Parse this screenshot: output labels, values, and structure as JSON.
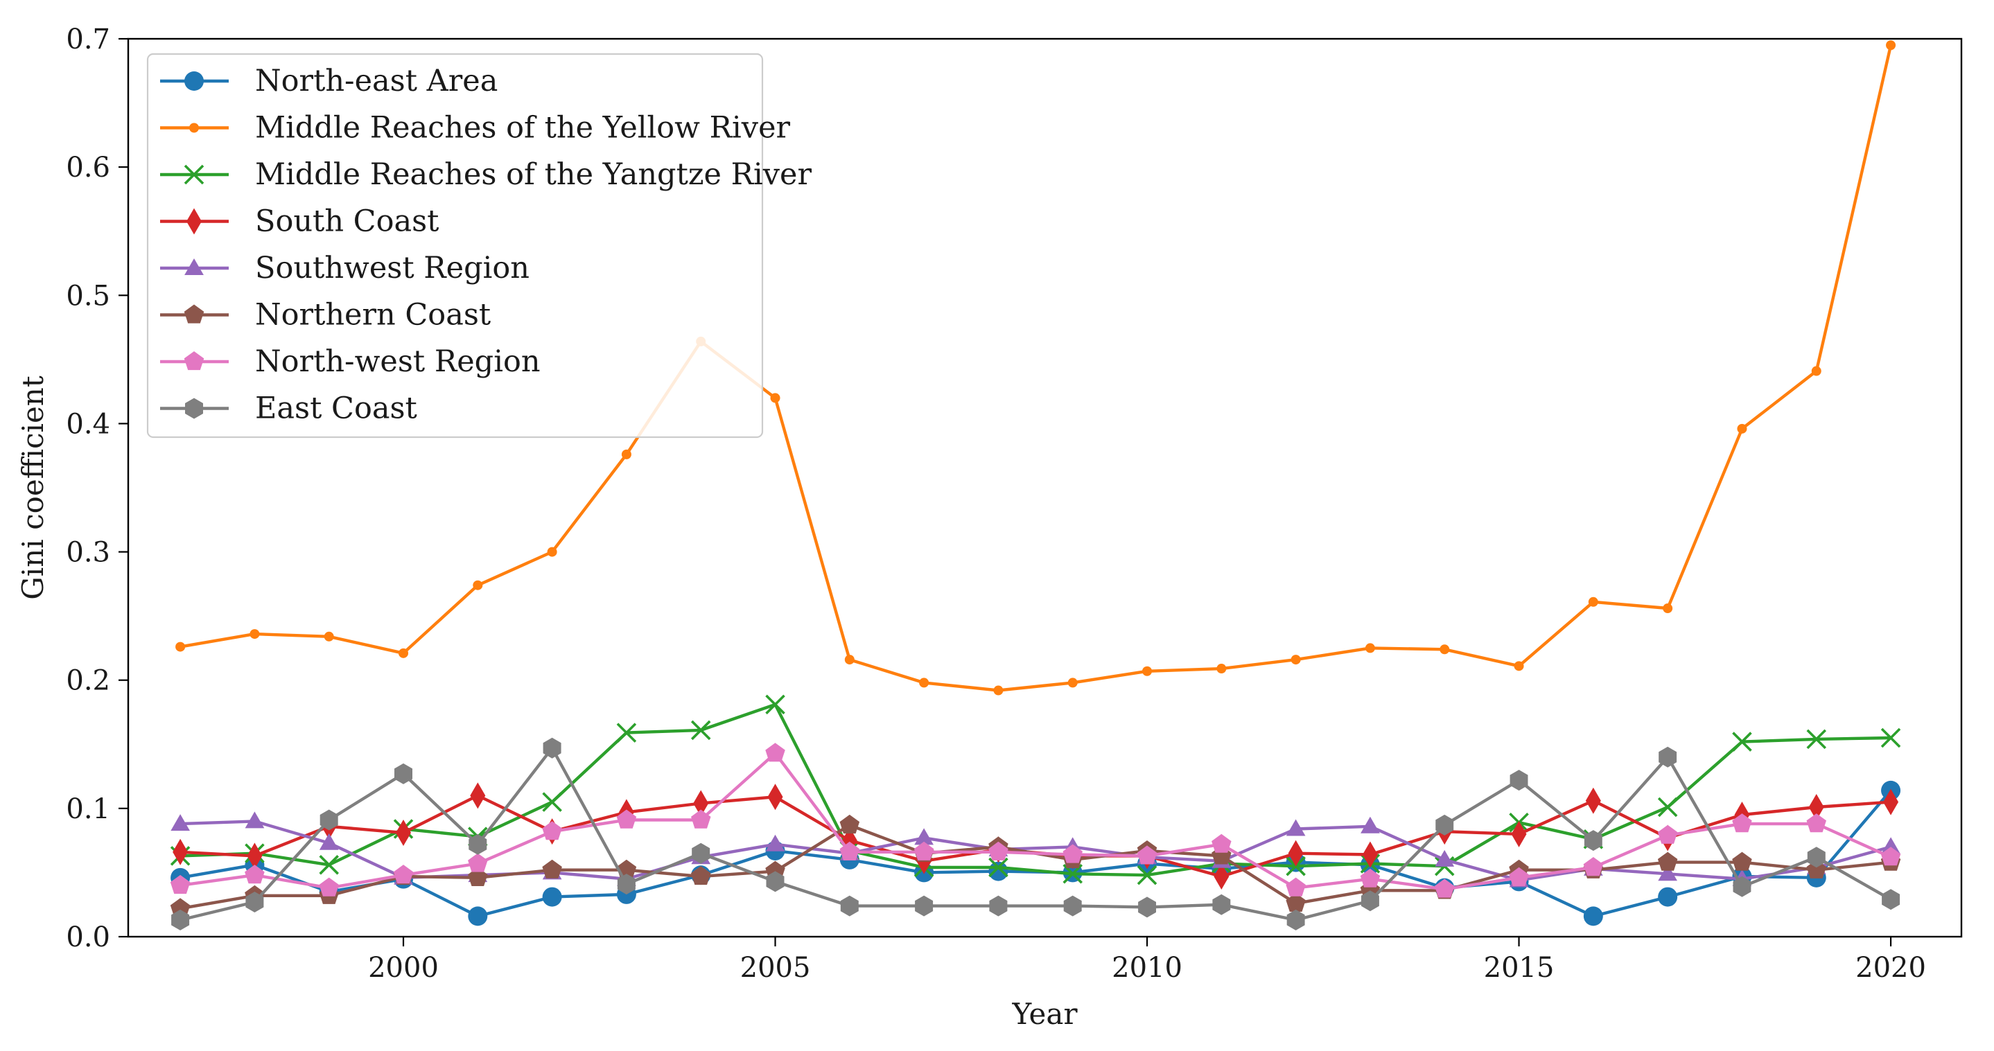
{
  "chart_data": {
    "type": "line",
    "title": "",
    "xlabel": "Year",
    "ylabel": "Gini coefficient",
    "xlim": [
      1996.3,
      2020.95
    ],
    "ylim": [
      0.0,
      0.7
    ],
    "x_ticks": [
      2000,
      2005,
      2010,
      2015,
      2020
    ],
    "x_tick_labels": [
      "2000",
      "2005",
      "2010",
      "2015",
      "2020"
    ],
    "y_ticks": [
      0.0,
      0.1,
      0.2,
      0.3,
      0.4,
      0.5,
      0.6,
      0.7
    ],
    "y_tick_labels": [
      "0.0",
      "0.1",
      "0.2",
      "0.3",
      "0.4",
      "0.5",
      "0.6",
      "0.7"
    ],
    "grid": false,
    "legend_position": "top-left",
    "x": [
      1997,
      1998,
      1999,
      2000,
      2001,
      2002,
      2003,
      2004,
      2005,
      2006,
      2007,
      2008,
      2009,
      2010,
      2011,
      2012,
      2013,
      2014,
      2015,
      2016,
      2017,
      2018,
      2019,
      2020
    ],
    "series": [
      {
        "name": "North-east Area",
        "color": "#1f77b4",
        "marker": "circle",
        "values": [
          0.046,
          0.056,
          0.035,
          0.045,
          0.016,
          0.031,
          0.033,
          0.048,
          0.067,
          0.06,
          0.05,
          0.051,
          0.05,
          0.057,
          0.053,
          0.058,
          0.056,
          0.038,
          0.043,
          0.016,
          0.031,
          0.047,
          0.046,
          0.114
        ]
      },
      {
        "name": "Middle Reaches of the Yellow River",
        "color": "#ff7f0e",
        "marker": "point",
        "values": [
          0.226,
          0.236,
          0.234,
          0.221,
          0.274,
          0.3,
          0.376,
          0.464,
          0.42,
          0.216,
          0.198,
          0.192,
          0.198,
          0.207,
          0.209,
          0.216,
          0.225,
          0.224,
          0.211,
          0.261,
          0.256,
          0.396,
          0.441,
          0.695
        ]
      },
      {
        "name": "Middle Reaches of the Yangtze River",
        "color": "#2ca02c",
        "marker": "x",
        "values": [
          0.063,
          0.065,
          0.056,
          0.084,
          0.078,
          0.105,
          0.159,
          0.161,
          0.181,
          0.067,
          0.054,
          0.054,
          0.049,
          0.048,
          0.057,
          0.055,
          0.057,
          0.055,
          0.089,
          0.076,
          0.101,
          0.152,
          0.154,
          0.155
        ]
      },
      {
        "name": "South Coast",
        "color": "#d62728",
        "marker": "diamond",
        "values": [
          0.066,
          0.063,
          0.086,
          0.081,
          0.11,
          0.082,
          0.097,
          0.104,
          0.109,
          0.075,
          0.059,
          0.068,
          0.063,
          0.063,
          0.047,
          0.065,
          0.064,
          0.082,
          0.08,
          0.106,
          0.077,
          0.095,
          0.101,
          0.105
        ]
      },
      {
        "name": "Southwest Region",
        "color": "#9467bd",
        "marker": "triangle",
        "values": [
          0.088,
          0.09,
          0.073,
          0.046,
          0.048,
          0.05,
          0.045,
          0.062,
          0.072,
          0.065,
          0.077,
          0.068,
          0.07,
          0.062,
          0.059,
          0.084,
          0.086,
          0.06,
          0.044,
          0.053,
          0.049,
          0.045,
          0.054,
          0.07
        ]
      },
      {
        "name": "Northern Coast",
        "color": "#8c564b",
        "marker": "pentagon",
        "values": [
          0.022,
          0.032,
          0.032,
          0.047,
          0.046,
          0.052,
          0.052,
          0.047,
          0.051,
          0.087,
          0.065,
          0.07,
          0.06,
          0.067,
          0.063,
          0.026,
          0.036,
          0.036,
          0.052,
          0.052,
          0.058,
          0.058,
          0.052,
          0.058
        ]
      },
      {
        "name": "North-west Region",
        "color": "#e377c2",
        "marker": "pentagon",
        "values": [
          0.04,
          0.048,
          0.038,
          0.048,
          0.057,
          0.082,
          0.091,
          0.091,
          0.143,
          0.066,
          0.066,
          0.066,
          0.064,
          0.063,
          0.072,
          0.038,
          0.045,
          0.037,
          0.046,
          0.054,
          0.079,
          0.088,
          0.088,
          0.062
        ]
      },
      {
        "name": "East Coast",
        "color": "#7f7f7f",
        "marker": "hexagon",
        "values": [
          0.013,
          0.027,
          0.091,
          0.127,
          0.072,
          0.147,
          0.041,
          0.065,
          0.043,
          0.024,
          0.024,
          0.024,
          0.024,
          0.023,
          0.025,
          0.013,
          0.028,
          0.087,
          0.122,
          0.075,
          0.14,
          0.039,
          0.062,
          0.029
        ]
      }
    ]
  }
}
